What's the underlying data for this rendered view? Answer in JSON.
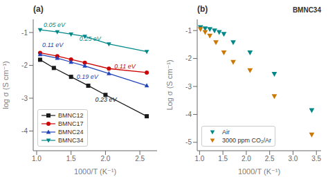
{
  "chart_data": [
    {
      "type": "line",
      "title": "(a)",
      "xlabel": "1000/T (K⁻¹)",
      "ylabel": "log σ (S cm⁻¹)",
      "xlim": [
        0.95,
        2.75
      ],
      "ylim": [
        -4.6,
        -0.6
      ],
      "xticks": [
        {
          "value": 1.0,
          "label": "1.0"
        },
        1.5,
        {
          "value": 2.0,
          "label": "2.0"
        },
        2.5
      ],
      "yticks": [
        -4,
        -3,
        -2,
        -1
      ],
      "legend": "lower left",
      "series": [
        {
          "name": "BMNC12",
          "color": "#1a1a1a",
          "marker": "square",
          "x": [
            1.05,
            1.25,
            1.5,
            1.75,
            2.0,
            2.6
          ],
          "values": [
            -1.83,
            -2.08,
            -2.35,
            -2.62,
            -2.9,
            -3.55
          ]
        },
        {
          "name": "BMNC17",
          "color": "#cc0000",
          "marker": "circle",
          "x": [
            1.05,
            1.3,
            1.5,
            1.7,
            2.05,
            2.6
          ],
          "values": [
            -1.62,
            -1.72,
            -1.82,
            -1.92,
            -2.1,
            -2.22
          ]
        },
        {
          "name": "BMNC24",
          "color": "#2244bb",
          "marker": "triangle-up",
          "x": [
            1.05,
            1.3,
            1.5,
            1.7,
            2.05,
            2.6
          ],
          "values": [
            -1.67,
            -1.78,
            -1.9,
            -2.02,
            -2.25,
            -2.62
          ]
        },
        {
          "name": "BMNC34",
          "color": "#008888",
          "marker": "triangle-down",
          "x": [
            1.05,
            1.3,
            1.5,
            1.7,
            2.05,
            2.6
          ],
          "values": [
            -0.92,
            -0.98,
            -1.05,
            -1.12,
            -1.35,
            -1.58
          ]
        }
      ],
      "annotations": [
        {
          "text": "0.05 eV",
          "x": 1.1,
          "y": -0.76,
          "color": "#008888"
        },
        {
          "text": "0.11 eV",
          "x": 1.08,
          "y": -1.38,
          "color": "#2244bb"
        },
        {
          "text": "0.25 eV",
          "x": 1.62,
          "y": -1.18,
          "color": "#008888"
        },
        {
          "text": "0.11 eV",
          "x": 2.13,
          "y": -2.04,
          "color": "#cc0000"
        },
        {
          "text": "0.19 eV",
          "x": 1.58,
          "y": -2.35,
          "color": "#2244bb"
        },
        {
          "text": "0.23 eV",
          "x": 1.85,
          "y": -3.05,
          "color": "#1a1a1a"
        }
      ]
    },
    {
      "type": "scatter",
      "title": "(b)",
      "subtitle": "BMNC34",
      "xlabel": "1000/T (K⁻¹)",
      "ylabel": "Log σ (S cm⁻¹)",
      "xlim": [
        0.95,
        3.6
      ],
      "ylim": [
        -5.3,
        -0.6
      ],
      "xticks": [
        {
          "value": 1.0,
          "label": "1.0"
        },
        1.5,
        {
          "value": 2.0,
          "label": "2.0"
        },
        2.5,
        {
          "value": 3.0,
          "label": "3.0"
        },
        3.5
      ],
      "yticks": [
        -5,
        -4,
        -3,
        -2,
        -1
      ],
      "legend": "lower left",
      "series": [
        {
          "name": "Air",
          "color": "#008888",
          "marker": "triangle-down",
          "x": [
            1.02,
            1.12,
            1.22,
            1.32,
            1.42,
            1.52,
            1.72,
            2.08,
            2.6,
            3.4
          ],
          "values": [
            -0.88,
            -0.92,
            -0.95,
            -1.0,
            -1.05,
            -1.12,
            -1.42,
            -1.78,
            -2.55,
            -3.85
          ]
        },
        {
          "name": "3000 ppm CO₂/Ar",
          "color": "#cc7700",
          "marker": "triangle-down",
          "x": [
            1.02,
            1.12,
            1.22,
            1.35,
            1.52,
            1.72,
            2.08,
            2.6,
            3.4
          ],
          "values": [
            -0.95,
            -1.05,
            -1.18,
            -1.42,
            -1.78,
            -2.12,
            -2.42,
            -3.35,
            -4.72
          ]
        }
      ]
    }
  ]
}
